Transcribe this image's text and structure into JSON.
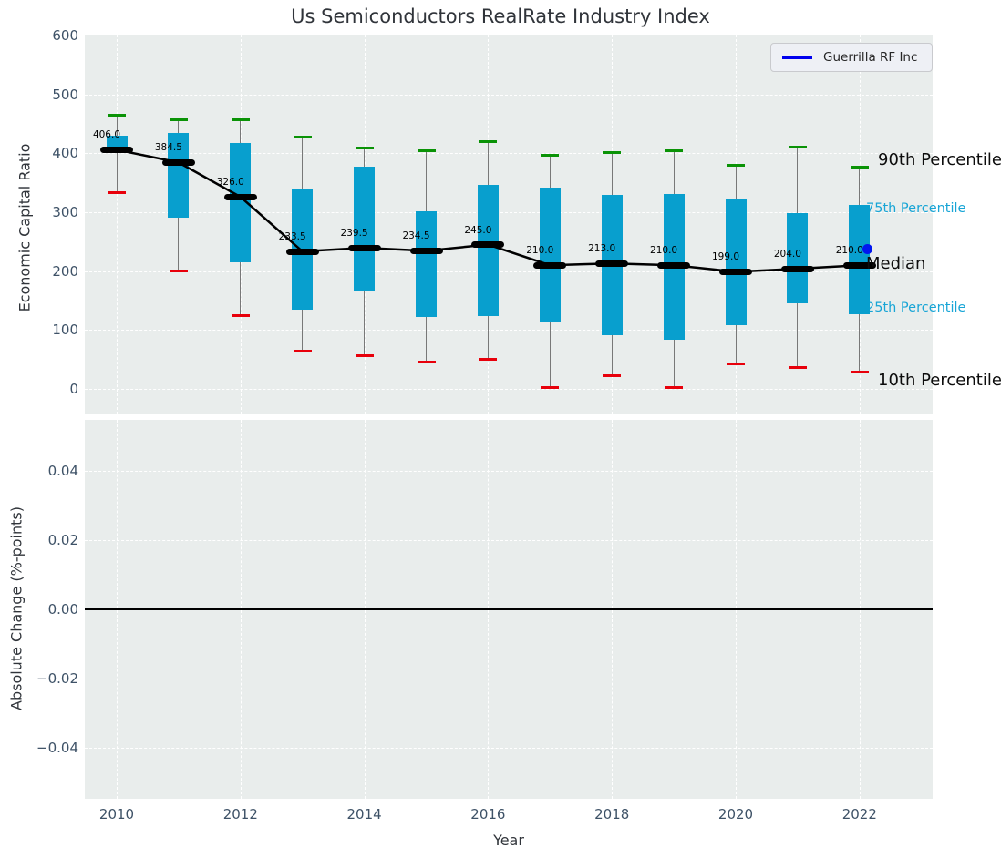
{
  "title": "Us Semiconductors RealRate Industry Index",
  "legend": {
    "label": "Guerrilla RF Inc",
    "line_color": "#0000ee"
  },
  "colors": {
    "bar": "#089fce",
    "p90_cap": "#0a9306",
    "p10_cap": "#e8000b",
    "median_line": "#000000",
    "whisker": "#787878",
    "plot_background": "#e9edec",
    "grid": "#ffffff",
    "tick_text": "#3e5267",
    "cyan_label": "#18a5d6",
    "company_point": "#0016f0"
  },
  "chart_data": [
    {
      "type": "bar",
      "subtype": "percentile-box-timeseries",
      "title": "Us Semiconductors RealRate Industry Index",
      "xlabel": "",
      "ylabel": "Economic Capital Ratio",
      "x": [
        2010,
        2011,
        2012,
        2013,
        2014,
        2015,
        2016,
        2017,
        2018,
        2019,
        2020,
        2021,
        2022
      ],
      "xticks": [
        2010,
        2012,
        2014,
        2016,
        2018,
        2020,
        2022
      ],
      "yticks": [
        0,
        100,
        200,
        300,
        400,
        500,
        600
      ],
      "ylim": [
        -45,
        605
      ],
      "grid": true,
      "series": [
        {
          "name": "90th Percentile",
          "values": [
            464,
            457,
            457,
            428,
            409,
            404,
            420,
            397,
            402,
            405,
            380,
            411,
            377
          ]
        },
        {
          "name": "75th Percentile",
          "values": [
            430,
            435,
            417,
            338,
            377,
            302,
            346,
            342,
            330,
            331,
            321,
            298,
            313
          ]
        },
        {
          "name": "Median",
          "values": [
            406.0,
            384.5,
            326.0,
            233.5,
            239.5,
            234.5,
            245.0,
            210.0,
            213.0,
            210.0,
            199.0,
            204.0,
            210.0
          ]
        },
        {
          "name": "25th Percentile",
          "values": [
            400,
            291,
            215,
            135,
            165,
            122,
            124,
            113,
            91,
            83,
            108,
            145,
            127
          ]
        },
        {
          "name": "10th Percentile",
          "values": [
            334,
            200,
            125,
            64,
            57,
            45,
            50,
            2,
            22,
            2,
            42,
            36,
            28
          ]
        }
      ],
      "median_point_labels": [
        "406.0",
        "384.5",
        "326.0",
        "233.5",
        "239.5",
        "234.5",
        "245.0",
        "210.0",
        "213.0",
        "210.0",
        "199.0",
        "204.0",
        "210.0"
      ],
      "company_point": {
        "name": "Guerrilla RF Inc",
        "x": 2022,
        "y": 238
      },
      "right_labels": {
        "p90": "90th Percentile",
        "p75": "75th Percentile",
        "median": "Median",
        "p25": "25th Percentile",
        "p10": "10th Percentile"
      },
      "legend_position": "upper right"
    },
    {
      "type": "line",
      "title": "",
      "xlabel": "Year",
      "ylabel": "Absolute Change (%-points)",
      "xticks": [
        2010,
        2012,
        2014,
        2016,
        2018,
        2020,
        2022
      ],
      "yticks": [
        0.04,
        0.02,
        0.0,
        -0.02,
        -0.04
      ],
      "ylim": [
        -0.055,
        0.055
      ],
      "grid": true,
      "zero_line": 0.0,
      "series": []
    }
  ]
}
